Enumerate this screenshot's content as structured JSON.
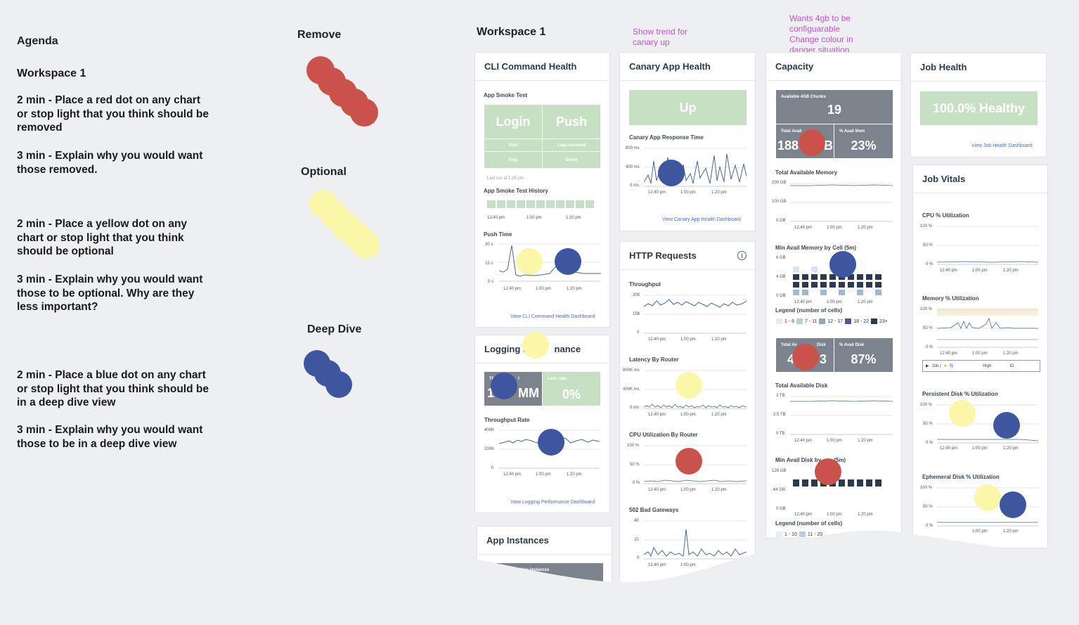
{
  "agenda": {
    "title": "Agenda",
    "workspace": "Workspace 1",
    "step1": "2 min - Place a red dot on any chart\nor stop light that you think should be\nremoved",
    "step2": "3 min - Explain why you would want\nthose removed.",
    "step3": "2 min - Place a yellow dot on any\nchart or stop light that you think\nshould be optional",
    "step4": "3 min - Explain why you would want\nthose to be optional.  Why are they\nless important?",
    "step5": "2 min - Place a blue dot on any chart\nor stop light that you think should be\nin a deep dive view",
    "step6": "3 min - Explain why you would want\nthose to be in a deep dive view"
  },
  "legend_labels": {
    "remove": "Remove",
    "optional": "Optional",
    "deep_dive": "Deep Dive"
  },
  "workspace_title": "Workspace 1",
  "annotations": {
    "canary": "Show trend for\ncanary up",
    "capacity": "Wants 4gb to be\nconfiguarable\nChange colour in\ndanger situation"
  },
  "colors": {
    "red_dot": "#c9534b",
    "yellow_dot": "#faf7a8",
    "blue_dot": "#3e55a0",
    "green": "#c5e0c3",
    "gray": "#7d838c",
    "navy": "#2c3a4f"
  },
  "cli": {
    "title": "CLI Command Health",
    "smoke_label": "App Smoke Test",
    "login": "Login",
    "push": "Push",
    "start": "Start",
    "logs_received": "Logs received",
    "stop": "Stop",
    "delete": "Delete",
    "last_run": "Last run at 1:25 pm",
    "history_label": "App Smoke Test History",
    "push_time_label": "Push Time",
    "y_top": "30 s",
    "y_mid": "15 s",
    "y_bot": "0 s",
    "link": "View CLI Command Health Dashboard"
  },
  "times": {
    "t1": "12:40 pm",
    "t2": "1:00 pm",
    "t3": "1:20 pm"
  },
  "logging": {
    "title_a": "Logging P",
    "title_b": "nance",
    "throughput_cap": "Th",
    "throughput_cap2": "t",
    "throughput_val_a": "1",
    "throughput_val_b": "MM",
    "loss_cap": "Loss rate",
    "loss_val": "0%",
    "rate_label": "Throughput Rate",
    "y_top": "400K",
    "y_mid": "200K",
    "y_bot": "0",
    "link": "View Logging Performance Dashboard"
  },
  "app_instances": {
    "title": "App Instances",
    "cap": "Total Running App Instances"
  },
  "canary": {
    "title": "Canary App Health",
    "status": "Up",
    "rt_label": "Canary App Response Time",
    "y_top": "800 ms",
    "y_mid": "400 ms",
    "y_bot": "0 ms",
    "link": "View Canary App Health Dashboard"
  },
  "http": {
    "title": "HTTP Requests",
    "throughput_label": "Throughput",
    "t_y_top": "30K",
    "t_y_mid": "15K",
    "t_y_bot": "0",
    "latency_label": "Latency By Router",
    "l_y_top": "800K ms",
    "l_y_mid": "400K ms",
    "l_y_bot": "0 ms",
    "cpu_label": "CPU Utilization By Router",
    "c_y_top": "100 %",
    "c_y_mid": "50 %",
    "c_y_bot": "0 %",
    "bad_label": "502 Bad Gateways",
    "b_y_top": "40",
    "b_y_mid": "20",
    "b_y_bot": "0"
  },
  "capacity": {
    "title": "Capacity",
    "chunks_cap": "Available 4GB Chunks",
    "chunks_val": "19",
    "avail_mem_cap": "Total Avail",
    "avail_mem_val_a": "188",
    "avail_mem_val_b": "B",
    "pct_mem_cap": "% Avail Mem",
    "pct_mem_val": "23%",
    "tam_label": "Total Available Memory",
    "tam_y_top": "200 GB",
    "tam_y_mid": "100 GB",
    "tam_y_bot": "0 GB",
    "min_mem_label": "Min Avail Memory by Cell (5m)",
    "mm_y_top": "6 GB",
    "mm_y_mid": "4 GB",
    "mm_y_bot": "0 GB",
    "legend_label": "Legend (number of cells)",
    "leg1": "1 - 6",
    "leg2": "7 - 11",
    "leg3": "12 - 17",
    "leg4": "18 - 22",
    "leg5": "23+",
    "avail_disk_cap": "Total Av",
    "avail_disk_cap2": "Disk",
    "avail_disk_val_a": "4",
    "avail_disk_val_b": "3",
    "pct_disk_cap": "% Avail Disk",
    "pct_disk_val": "87%",
    "tad_label": "Total Available Disk",
    "tad_y_top": "3 TB",
    "tad_y_mid": "2.5 TB",
    "tad_y_bot": "0 TB",
    "min_disk_label": "Min Avail Disk by",
    "min_disk_label2": "(5m)",
    "md_y_top": "128 GB",
    "md_y_mid": "64 GB",
    "md_y_bot": "0 GB",
    "legend2_label": "Legend (number of cells)",
    "leg2_1": "1 - 10",
    "leg2_2": "11 - 20"
  },
  "job": {
    "title": "Job Health",
    "status": "100.0% Healthy",
    "link": "View Job Health Dashboard",
    "vitals_title": "Job Vitals",
    "cpu_label": "CPU % Utilization",
    "mem_label": "Memory % Utilization",
    "pdisk_label": "Persistent Disk % Utilization",
    "edisk_label": "Ephemeral Disk % Utilization",
    "y_top": "100 %",
    "y_mid": "50 %",
    "y_bot": "0 %",
    "legend_job": "Job (",
    "legend_job2": "0)",
    "legend_high": "High",
    "legend_id": "ID"
  }
}
